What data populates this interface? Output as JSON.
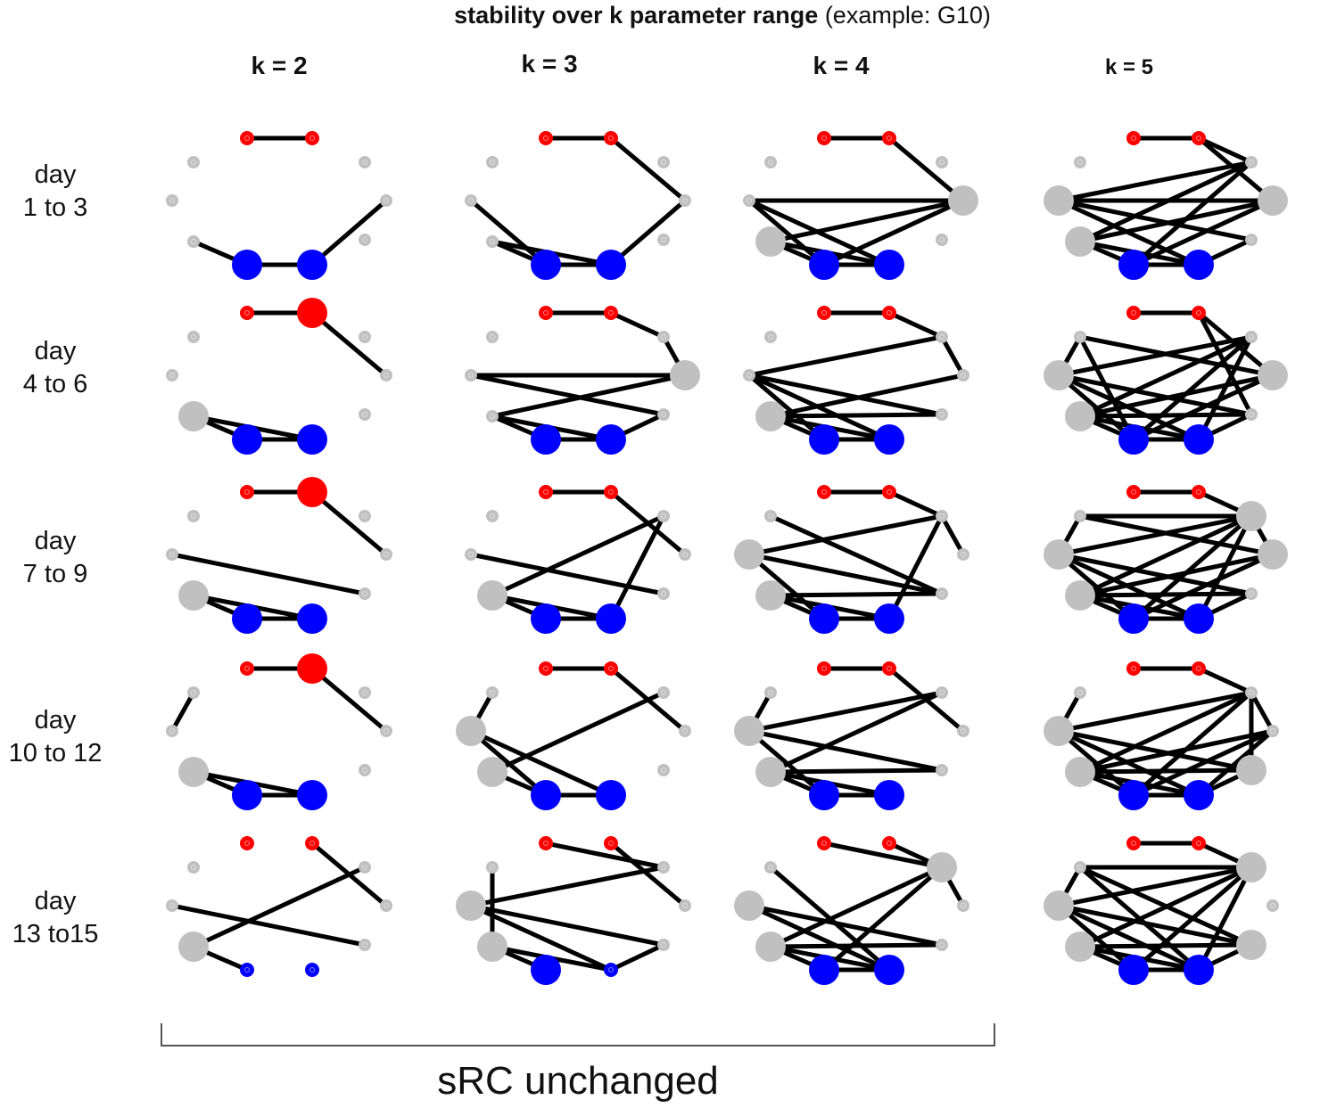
{
  "title": {
    "bold": "stability over k parameter range",
    "normal": "(example: G10)"
  },
  "columns": [
    "k = 2",
    "k = 3",
    "k = 4",
    "k = 5"
  ],
  "rows": [
    {
      "line1": "day",
      "line2": "1 to 3"
    },
    {
      "line1": "day",
      "line2": "4 to 6"
    },
    {
      "line1": "day",
      "line2": "7 to 9"
    },
    {
      "line1": "day",
      "line2": "10 to 12"
    },
    {
      "line1": "day",
      "line2": "13 to15"
    }
  ],
  "bracket_label": "sRC unchanged",
  "colors": {
    "red": "#ff0000",
    "blue": "#0000ff",
    "grey": "#c0c0c0",
    "edge": "#000000"
  },
  "nodes": [
    {
      "id": 0,
      "color": "red"
    },
    {
      "id": 1,
      "color": "red"
    },
    {
      "id": 2,
      "color": "grey"
    },
    {
      "id": 3,
      "color": "grey"
    },
    {
      "id": 4,
      "color": "grey"
    },
    {
      "id": 5,
      "color": "grey"
    },
    {
      "id": 6,
      "color": "grey"
    },
    {
      "id": 7,
      "color": "grey"
    },
    {
      "id": 8,
      "color": "blue"
    },
    {
      "id": 9,
      "color": "blue"
    }
  ],
  "panels": [
    [
      {
        "big": [
          8,
          9
        ],
        "edges": [
          [
            0,
            1
          ],
          [
            6,
            8
          ],
          [
            8,
            9
          ],
          [
            9,
            4
          ]
        ]
      },
      {
        "big": [
          1,
          6,
          8,
          9
        ],
        "edges": [
          [
            0,
            1
          ],
          [
            1,
            4
          ],
          [
            6,
            8
          ],
          [
            6,
            9
          ],
          [
            8,
            9
          ]
        ]
      },
      {
        "big": [
          1,
          6,
          8,
          9
        ],
        "edges": [
          [
            0,
            1
          ],
          [
            1,
            4
          ],
          [
            6,
            8
          ],
          [
            8,
            9
          ],
          [
            6,
            9
          ],
          [
            5,
            7
          ]
        ]
      },
      {
        "big": [
          1,
          6,
          8,
          9
        ],
        "edges": [
          [
            0,
            1
          ],
          [
            1,
            4
          ],
          [
            2,
            5
          ],
          [
            6,
            8
          ],
          [
            8,
            9
          ],
          [
            6,
            9
          ]
        ]
      },
      {
        "big": [
          6
        ],
        "edges": [
          [
            1,
            4
          ],
          [
            6,
            3
          ],
          [
            5,
            7
          ],
          [
            6,
            8
          ]
        ]
      }
    ],
    [
      {
        "big": [
          8,
          9
        ],
        "edges": [
          [
            0,
            1
          ],
          [
            1,
            4
          ],
          [
            4,
            9
          ],
          [
            5,
            8
          ],
          [
            8,
            9
          ],
          [
            6,
            8
          ],
          [
            6,
            9
          ]
        ]
      },
      {
        "big": [
          4,
          8,
          9
        ],
        "edges": [
          [
            0,
            1
          ],
          [
            1,
            3
          ],
          [
            3,
            4
          ],
          [
            5,
            7
          ],
          [
            5,
            4
          ],
          [
            6,
            4
          ],
          [
            6,
            8
          ],
          [
            8,
            9
          ],
          [
            6,
            9
          ],
          [
            9,
            7
          ]
        ]
      },
      {
        "big": [
          6,
          8,
          9
        ],
        "edges": [
          [
            0,
            1
          ],
          [
            1,
            4
          ],
          [
            6,
            3
          ],
          [
            3,
            9
          ],
          [
            5,
            7
          ],
          [
            6,
            8
          ],
          [
            8,
            9
          ],
          [
            6,
            9
          ]
        ]
      },
      {
        "big": [
          5,
          6,
          8,
          9
        ],
        "edges": [
          [
            0,
            1
          ],
          [
            1,
            4
          ],
          [
            2,
            5
          ],
          [
            6,
            3
          ],
          [
            5,
            9
          ],
          [
            6,
            8
          ],
          [
            8,
            9
          ],
          [
            5,
            8
          ]
        ]
      },
      {
        "big": [
          5,
          6,
          8
        ],
        "edges": [
          [
            0,
            3
          ],
          [
            1,
            4
          ],
          [
            5,
            3
          ],
          [
            5,
            7
          ],
          [
            5,
            9
          ],
          [
            6,
            8
          ],
          [
            6,
            9
          ],
          [
            9,
            7
          ],
          [
            6,
            2
          ]
        ]
      }
    ],
    [
      {
        "big": [
          4,
          6,
          8,
          9
        ],
        "edges": [
          [
            0,
            1
          ],
          [
            1,
            4
          ],
          [
            5,
            4
          ],
          [
            6,
            4
          ],
          [
            8,
            4
          ],
          [
            5,
            8
          ],
          [
            5,
            9
          ],
          [
            6,
            8
          ],
          [
            8,
            9
          ],
          [
            6,
            9
          ]
        ]
      },
      {
        "big": [
          6,
          8,
          9
        ],
        "edges": [
          [
            0,
            1
          ],
          [
            1,
            3
          ],
          [
            4,
            3
          ],
          [
            5,
            3
          ],
          [
            6,
            4
          ],
          [
            5,
            7
          ],
          [
            6,
            7
          ],
          [
            5,
            8
          ],
          [
            5,
            9
          ],
          [
            6,
            8
          ],
          [
            8,
            9
          ],
          [
            6,
            9
          ]
        ]
      },
      {
        "big": [
          5,
          6,
          8,
          9
        ],
        "edges": [
          [
            0,
            1
          ],
          [
            1,
            3
          ],
          [
            2,
            7
          ],
          [
            5,
            3
          ],
          [
            3,
            9
          ],
          [
            4,
            3
          ],
          [
            5,
            7
          ],
          [
            6,
            7
          ],
          [
            5,
            8
          ],
          [
            6,
            8
          ],
          [
            8,
            9
          ],
          [
            6,
            9
          ]
        ]
      },
      {
        "big": [
          5,
          6,
          8,
          9
        ],
        "edges": [
          [
            0,
            1
          ],
          [
            1,
            4
          ],
          [
            2,
            5
          ],
          [
            5,
            3
          ],
          [
            6,
            3
          ],
          [
            5,
            7
          ],
          [
            6,
            7
          ],
          [
            5,
            8
          ],
          [
            6,
            8
          ],
          [
            8,
            9
          ],
          [
            6,
            9
          ]
        ]
      },
      {
        "big": [
          3,
          5,
          6,
          8,
          9
        ],
        "edges": [
          [
            0,
            3
          ],
          [
            1,
            3
          ],
          [
            2,
            9
          ],
          [
            3,
            4
          ],
          [
            3,
            6
          ],
          [
            3,
            8
          ],
          [
            5,
            7
          ],
          [
            6,
            7
          ],
          [
            5,
            9
          ],
          [
            6,
            8
          ],
          [
            8,
            9
          ],
          [
            6,
            9
          ]
        ]
      }
    ],
    [
      {
        "big": [
          4,
          5,
          6,
          8,
          9
        ],
        "edges": [
          [
            0,
            1
          ],
          [
            1,
            3
          ],
          [
            1,
            4
          ],
          [
            5,
            4
          ],
          [
            5,
            3
          ],
          [
            6,
            4
          ],
          [
            5,
            7
          ],
          [
            6,
            8
          ],
          [
            8,
            9
          ],
          [
            6,
            9
          ],
          [
            5,
            9
          ],
          [
            4,
            8
          ],
          [
            3,
            8
          ],
          [
            7,
            9
          ],
          [
            6,
            3
          ]
        ]
      },
      {
        "big": [
          4,
          5,
          6,
          8,
          9
        ],
        "edges": [
          [
            0,
            1
          ],
          [
            1,
            4
          ],
          [
            1,
            7
          ],
          [
            2,
            5
          ],
          [
            2,
            4
          ],
          [
            5,
            3
          ],
          [
            5,
            7
          ],
          [
            6,
            3
          ],
          [
            6,
            4
          ],
          [
            6,
            7
          ],
          [
            3,
            8
          ],
          [
            3,
            9
          ],
          [
            5,
            8
          ],
          [
            5,
            9
          ],
          [
            6,
            8
          ],
          [
            8,
            9
          ],
          [
            6,
            9
          ],
          [
            4,
            8
          ],
          [
            7,
            9
          ],
          [
            2,
            8
          ]
        ]
      },
      {
        "big": [
          3,
          4,
          5,
          6,
          8,
          9
        ],
        "edges": [
          [
            0,
            1
          ],
          [
            1,
            3
          ],
          [
            2,
            5
          ],
          [
            2,
            4
          ],
          [
            3,
            4
          ],
          [
            5,
            3
          ],
          [
            5,
            7
          ],
          [
            6,
            3
          ],
          [
            6,
            4
          ],
          [
            6,
            7
          ],
          [
            3,
            8
          ],
          [
            3,
            9
          ],
          [
            5,
            8
          ],
          [
            5,
            9
          ],
          [
            6,
            8
          ],
          [
            8,
            9
          ],
          [
            6,
            9
          ],
          [
            4,
            8
          ],
          [
            7,
            9
          ],
          [
            2,
            3
          ]
        ]
      },
      {
        "big": [
          5,
          6,
          7,
          8,
          9
        ],
        "edges": [
          [
            0,
            1
          ],
          [
            1,
            3
          ],
          [
            2,
            5
          ],
          [
            3,
            4
          ],
          [
            5,
            3
          ],
          [
            5,
            7
          ],
          [
            6,
            3
          ],
          [
            6,
            4
          ],
          [
            6,
            7
          ],
          [
            3,
            8
          ],
          [
            4,
            8
          ],
          [
            5,
            8
          ],
          [
            5,
            9
          ],
          [
            6,
            8
          ],
          [
            8,
            9
          ],
          [
            6,
            9
          ],
          [
            4,
            9
          ],
          [
            7,
            9
          ],
          [
            3,
            7
          ]
        ]
      },
      {
        "big": [
          3,
          5,
          6,
          7,
          8,
          9
        ],
        "edges": [
          [
            0,
            1
          ],
          [
            1,
            3
          ],
          [
            2,
            3
          ],
          [
            2,
            7
          ],
          [
            2,
            9
          ],
          [
            3,
            5
          ],
          [
            3,
            6
          ],
          [
            3,
            8
          ],
          [
            3,
            9
          ],
          [
            5,
            7
          ],
          [
            5,
            8
          ],
          [
            6,
            7
          ],
          [
            5,
            9
          ],
          [
            6,
            8
          ],
          [
            8,
            9
          ],
          [
            6,
            9
          ],
          [
            7,
            9
          ],
          [
            2,
            5
          ]
        ]
      }
    ]
  ]
}
